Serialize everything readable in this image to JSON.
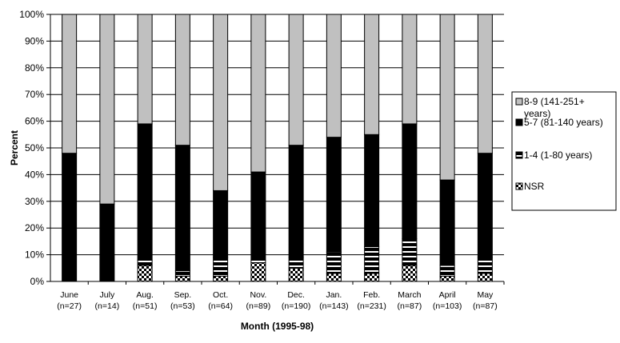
{
  "chart_data": {
    "type": "bar",
    "stacked": "percent",
    "xlabel": "Month (1995-98)",
    "ylabel": "Percent",
    "ylim": [
      0,
      100
    ],
    "y_ticks": [
      "0%",
      "10%",
      "20%",
      "30%",
      "40%",
      "50%",
      "60%",
      "70%",
      "80%",
      "90%",
      "100%"
    ],
    "grid": true,
    "legend_position": "right",
    "categories": [
      {
        "month": "June",
        "n": "(n=27)"
      },
      {
        "month": "July",
        "n": "(n=14)"
      },
      {
        "month": "Aug.",
        "n": "(n=51)"
      },
      {
        "month": "Sep.",
        "n": "(n=53)"
      },
      {
        "month": "Oct.",
        "n": "(n=64)"
      },
      {
        "month": "Nov.",
        "n": "(n=89)"
      },
      {
        "month": "Dec.",
        "n": "(n=190)"
      },
      {
        "month": "Jan.",
        "n": "(n=143)"
      },
      {
        "month": "Feb.",
        "n": "(n=231)"
      },
      {
        "month": "March",
        "n": "(n=87)"
      },
      {
        "month": "April",
        "n": "(n=103)"
      },
      {
        "month": "May",
        "n": "(n=87)"
      }
    ],
    "series": [
      {
        "name": "NSR",
        "pattern": "checker",
        "values": [
          0,
          0,
          6,
          2,
          2,
          7,
          5,
          3,
          3,
          6,
          2,
          3
        ]
      },
      {
        "name": "1-4 (1-80 years)",
        "pattern": "stripes",
        "values": [
          0,
          0,
          2,
          2,
          7,
          1,
          4,
          8,
          10,
          10,
          4,
          6
        ]
      },
      {
        "name": "5-7 (81-140 years)",
        "pattern": "solid",
        "color": "#000000",
        "values": [
          48,
          29,
          51,
          47,
          25,
          33,
          42,
          43,
          42,
          43,
          32,
          39
        ]
      },
      {
        "name": "8-9 (141-251+ years)",
        "pattern": "solid",
        "color": "#c0c0c0",
        "values": [
          52,
          71,
          41,
          49,
          66,
          59,
          49,
          46,
          45,
          41,
          62,
          52
        ]
      }
    ],
    "legend_order": [
      {
        "series_index": 3,
        "lines": [
          "8-9 (141-251+",
          "years)"
        ]
      },
      {
        "series_index": 2,
        "lines": [
          "5-7 (81-140 years)"
        ]
      },
      {
        "series_index": 1,
        "lines": [
          "1-4 (1-80 years)"
        ]
      },
      {
        "series_index": 0,
        "lines": [
          "NSR"
        ]
      }
    ]
  }
}
